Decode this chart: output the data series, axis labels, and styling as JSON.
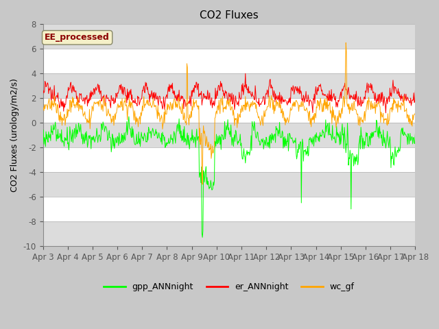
{
  "title": "CO2 Fluxes",
  "ylabel": "CO2 Fluxes (urology/m2/s)",
  "xlim_days": 15,
  "ylim": [
    -10,
    8
  ],
  "yticks": [
    -10,
    -8,
    -6,
    -4,
    -2,
    0,
    2,
    4,
    6,
    8
  ],
  "x_labels": [
    "Apr 3",
    "Apr 4",
    "Apr 5",
    "Apr 6",
    "Apr 7",
    "Apr 8",
    "Apr 9",
    "Apr 10",
    "Apr 11",
    "Apr 12",
    "Apr 13",
    "Apr 14",
    "Apr 15",
    "Apr 16",
    "Apr 17",
    "Apr 18"
  ],
  "color_gpp": "#00FF00",
  "color_er": "#FF0000",
  "color_wc": "#FFA500",
  "fig_bg": "#C8C8C8",
  "plot_bg": "#FFFFFF",
  "band_color": "#DCDCDC",
  "annotation_text": "EE_processed",
  "annotation_color": "#8B0000",
  "annotation_bg": "#F5F0C8",
  "legend_labels": [
    "gpp_ANNnight",
    "er_ANNnight",
    "wc_gf"
  ],
  "title_fontsize": 11,
  "label_fontsize": 9,
  "tick_fontsize": 8.5,
  "linewidth": 0.7
}
